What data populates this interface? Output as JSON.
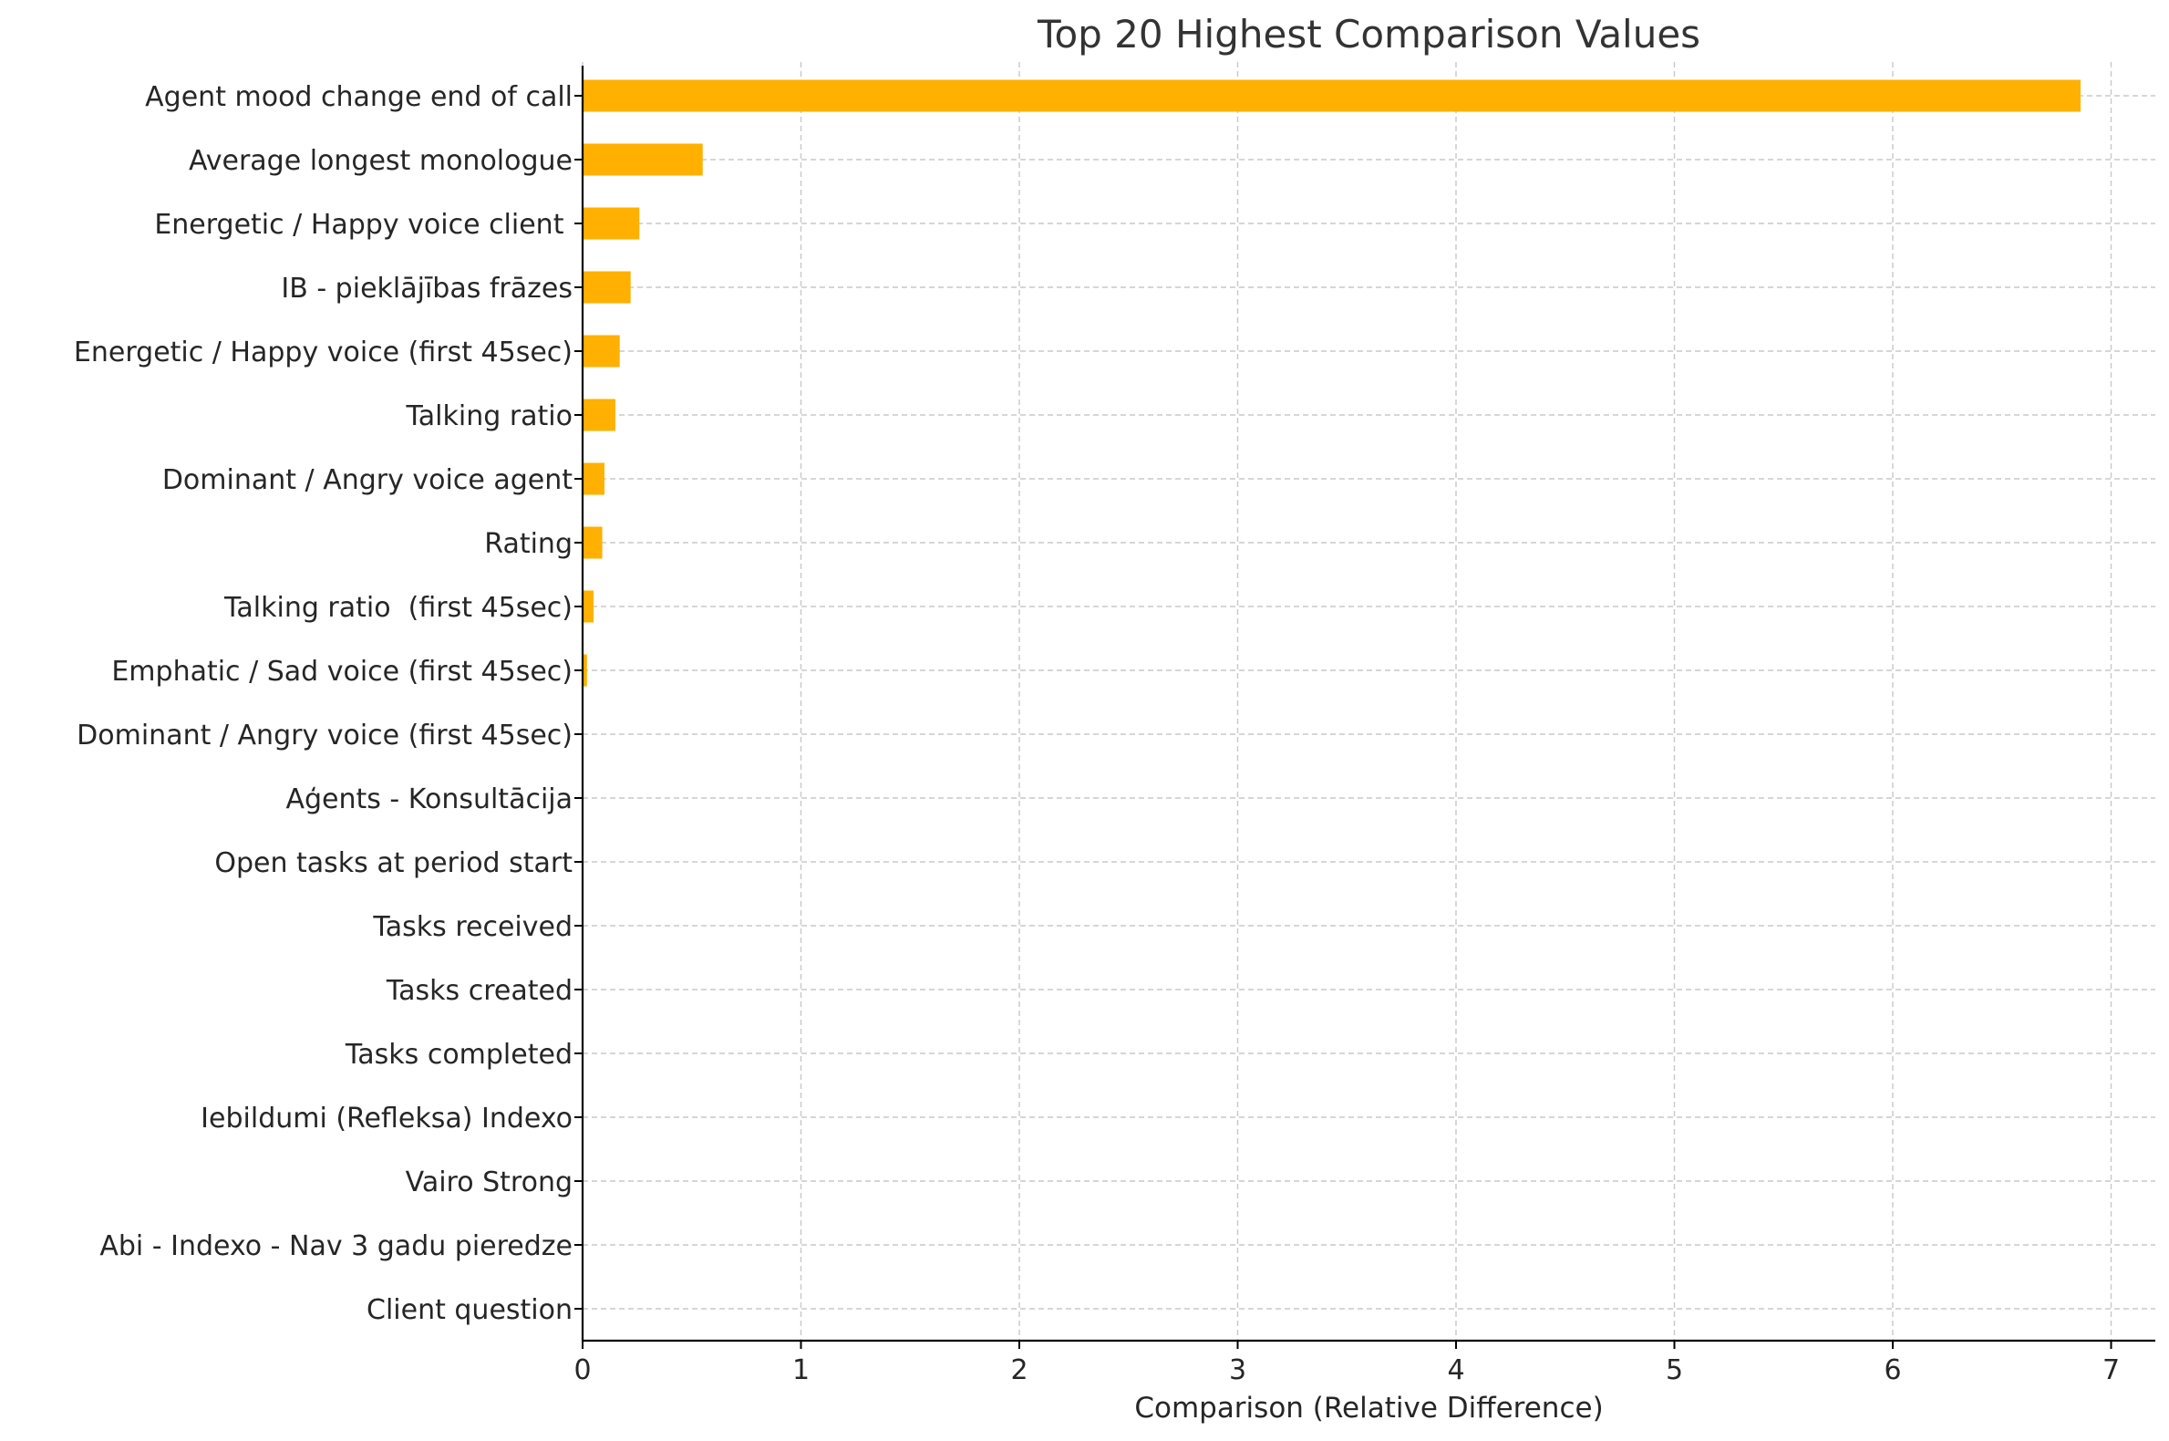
{
  "chart_data": {
    "type": "bar",
    "orientation": "horizontal",
    "title": "Top 20 Highest Comparison Values",
    "xlabel": "Comparison (Relative Difference)",
    "ylabel": "",
    "xlim": [
      0,
      7.2
    ],
    "x_ticks": [
      "0",
      "1",
      "2",
      "3",
      "4",
      "5",
      "6",
      "7"
    ],
    "grid": true,
    "bar_color": "#FFB000",
    "categories": [
      "Agent mood change end of call",
      "Average longest monologue",
      "Energetic / Happy voice client ",
      "IB - pieklājības frāzes",
      "Energetic / Happy voice (first 45sec)",
      "Talking ratio",
      "Dominant / Angry voice agent",
      "Rating",
      "Talking ratio  (first 45sec)",
      "Emphatic / Sad voice (first 45sec)",
      "Dominant / Angry voice (first 45sec)",
      "Aģents - Konsultācija",
      "Open tasks at period start",
      "Tasks received",
      "Tasks created",
      "Tasks completed",
      "Iebildumi (Refleksa) Indexo",
      "Vairo Strong",
      "Abi - Indexo - Nav 3 gadu pieredze",
      "Client question"
    ],
    "values": [
      6.86,
      0.55,
      0.26,
      0.22,
      0.17,
      0.15,
      0.1,
      0.09,
      0.05,
      0.02,
      0.003,
      0.002,
      0.002,
      0.001,
      0.001,
      0.001,
      0.001,
      0.001,
      0.001,
      0.001
    ]
  }
}
